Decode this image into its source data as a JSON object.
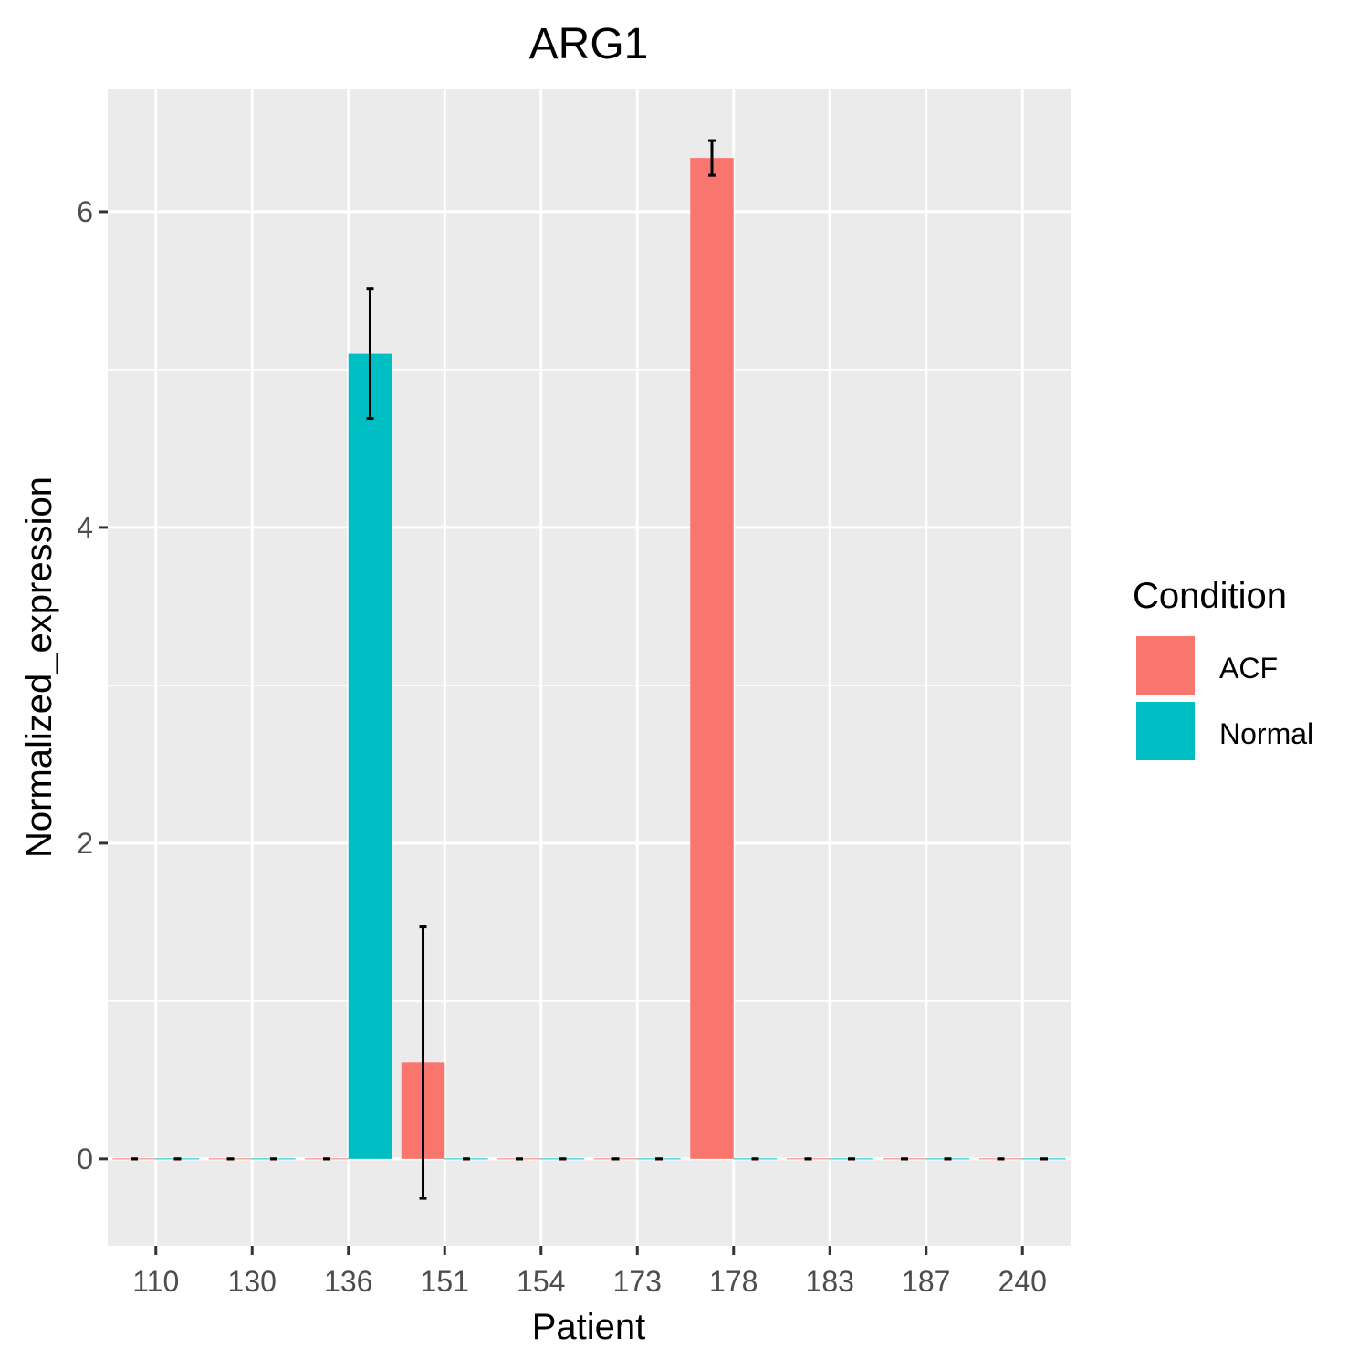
{
  "chart_data": {
    "type": "bar",
    "title": "ARG1",
    "xlabel": "Patient",
    "ylabel": "Normalized_expression",
    "categories": [
      "110",
      "130",
      "136",
      "151",
      "154",
      "173",
      "178",
      "183",
      "187",
      "240"
    ],
    "y_ticks": [
      "0",
      "2",
      "4",
      "6"
    ],
    "ylim": [
      -0.55,
      6.78
    ],
    "grid": true,
    "legend": {
      "title": "Condition",
      "position": "right",
      "entries": [
        {
          "label": "ACF",
          "color": "#F8766D"
        },
        {
          "label": "Normal",
          "color": "#00BFC4"
        }
      ]
    },
    "series": [
      {
        "name": "ACF",
        "color": "#F8766D",
        "values": [
          0,
          0,
          0,
          0.61,
          0,
          0,
          6.34,
          0,
          0,
          0
        ],
        "error": [
          0,
          0,
          0,
          0.86,
          0,
          0,
          0.11,
          0,
          0,
          0
        ]
      },
      {
        "name": "Normal",
        "color": "#00BFC4",
        "values": [
          0,
          0,
          5.1,
          0,
          0,
          0,
          0,
          0,
          0,
          0
        ],
        "error": [
          0,
          0,
          0.41,
          0,
          0,
          0,
          0,
          0,
          0,
          0
        ]
      }
    ]
  }
}
